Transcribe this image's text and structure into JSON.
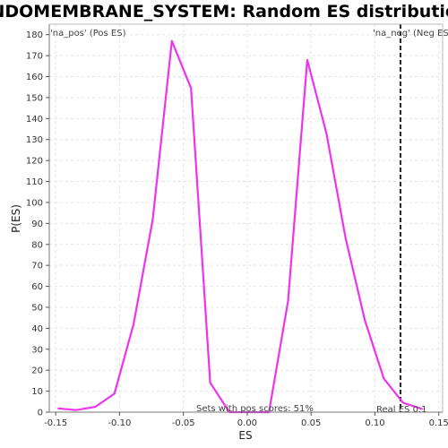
{
  "chart_data": {
    "type": "line",
    "title": "ENDOMEMBRANE_SYSTEM: Random ES distribution",
    "xlabel": "ES",
    "ylabel": "P(ES)",
    "xlim": [
      -0.155,
      0.153
    ],
    "ylim": [
      0,
      185
    ],
    "x_ticks": [
      -0.15,
      -0.1,
      -0.05,
      0.0,
      0.05,
      0.1,
      0.15
    ],
    "x_tick_labels": [
      "-0.15",
      "-0.10",
      "-0.05",
      "0.00",
      "0.05",
      "0.10",
      "0.15"
    ],
    "y_ticks": [
      0,
      10,
      20,
      30,
      40,
      50,
      60,
      70,
      80,
      90,
      100,
      110,
      120,
      130,
      140,
      150,
      160,
      170,
      180
    ],
    "grid": true,
    "series": [
      {
        "color": "#ee33ee",
        "x": [
          -0.148,
          -0.134,
          -0.119,
          -0.104,
          -0.089,
          -0.074,
          -0.059,
          -0.044,
          -0.029,
          -0.014,
          0.002,
          0.017,
          0.032,
          0.047,
          0.062,
          0.077,
          0.092,
          0.107,
          0.122,
          0.137
        ],
        "y": [
          1.8,
          1.0,
          2.5,
          8.8,
          42.0,
          92.0,
          177.0,
          154.5,
          14.0,
          0.0,
          0.0,
          0.0,
          53.0,
          168.0,
          133.0,
          83.0,
          44.0,
          16.0,
          4.5,
          1.5
        ]
      }
    ],
    "real_es": {
      "value": 0.12,
      "label": "Real ES 0.1",
      "color": "#222222"
    },
    "annotations": {
      "pos_label": "'na_pos' (Pos ES)",
      "pos_color": "#ee3333",
      "neg_label": "'na_neg' (Neg ES)",
      "neg_color": "#3333cc",
      "pos_scores_text": "Sets with pos scores: 51%"
    }
  }
}
